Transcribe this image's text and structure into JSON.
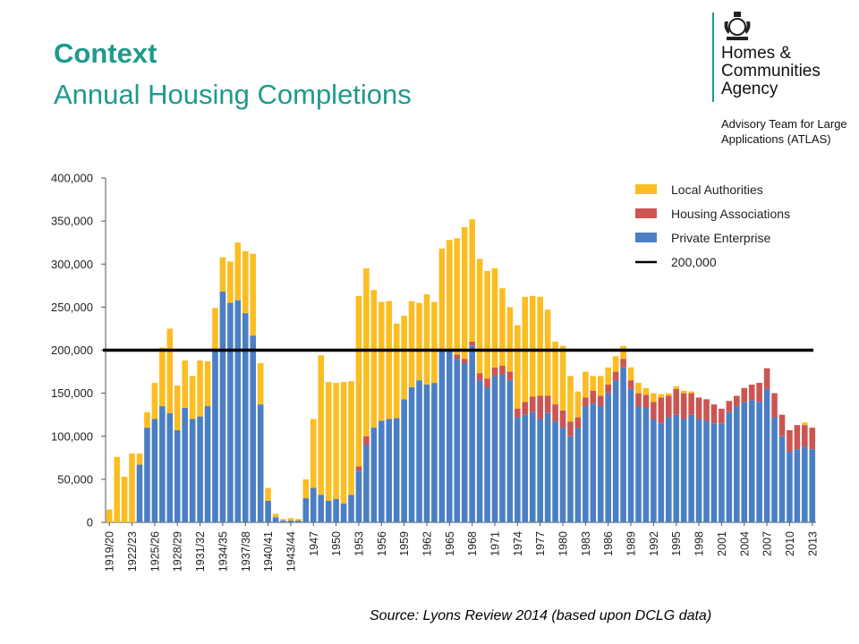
{
  "header": {
    "title": "Context",
    "subtitle": "Annual Housing Completions"
  },
  "logo": {
    "org_name": "Homes &\nCommunities\nAgency",
    "team": "Advisory Team for Large\nApplications (ATLAS)"
  },
  "source": "Source: Lyons  Review 2014 (based upon DCLG data)",
  "colors": {
    "local_authorities": "#fbbd22",
    "housing_associations": "#cc5552",
    "private_enterprise": "#4a7fc4",
    "reference_line": "#000000",
    "title": "#1e9a8c"
  },
  "chart_data": {
    "type": "bar",
    "stacked": true,
    "title": "",
    "xlabel": "",
    "ylabel": "",
    "ylim": [
      0,
      400000
    ],
    "yticks": [
      0,
      50000,
      100000,
      150000,
      200000,
      250000,
      300000,
      350000,
      400000
    ],
    "ytick_labels": [
      "0",
      "50,000",
      "100,000",
      "150,000",
      "200,000",
      "250,000",
      "300,000",
      "350,000",
      "400,000"
    ],
    "xtick_labels": [
      "1919/20",
      "1922/23",
      "1925/26",
      "1928/29",
      "1931/32",
      "1934/35",
      "1937/38",
      "1940/41",
      "1943/44",
      "1947",
      "1950",
      "1953",
      "1956",
      "1959",
      "1962",
      "1965",
      "1968",
      "1971",
      "1974",
      "1977",
      "1980",
      "1983",
      "1986",
      "1989",
      "1992",
      "1995",
      "1998",
      "2001",
      "2004",
      "2007",
      "2010",
      "2013"
    ],
    "xtick_indices": [
      0,
      3,
      6,
      9,
      12,
      15,
      18,
      21,
      24,
      27,
      30,
      33,
      36,
      39,
      42,
      45,
      48,
      51,
      54,
      57,
      60,
      63,
      66,
      69,
      72,
      75,
      78,
      81,
      84,
      87,
      90,
      93
    ],
    "grid": false,
    "legend_position": "top-right",
    "categories": [
      "1919/20",
      "1920/21",
      "1921/22",
      "1922/23",
      "1923/24",
      "1924/25",
      "1925/26",
      "1926/27",
      "1927/28",
      "1928/29",
      "1929/30",
      "1930/31",
      "1931/32",
      "1932/33",
      "1933/34",
      "1934/35",
      "1935/36",
      "1936/37",
      "1937/38",
      "1938/39",
      "1939/40",
      "1940/41",
      "1941/42",
      "1942/43",
      "1943/44",
      "1944/45",
      "1945/46",
      "1947",
      "1948",
      "1949",
      "1950",
      "1951",
      "1952",
      "1953",
      "1954",
      "1955",
      "1956",
      "1957",
      "1958",
      "1959",
      "1960",
      "1961",
      "1962",
      "1963",
      "1964",
      "1965",
      "1966",
      "1967",
      "1968",
      "1969",
      "1970",
      "1971",
      "1972",
      "1973",
      "1974",
      "1975",
      "1976",
      "1977",
      "1978",
      "1979",
      "1980",
      "1981",
      "1982",
      "1983",
      "1984",
      "1985",
      "1986",
      "1987",
      "1988",
      "1989",
      "1990",
      "1991",
      "1992",
      "1993",
      "1994",
      "1995",
      "1996",
      "1997",
      "1998",
      "1999",
      "2000",
      "2001",
      "2002",
      "2003",
      "2004",
      "2005",
      "2006",
      "2007",
      "2008",
      "2009",
      "2010",
      "2011",
      "2012",
      "2013"
    ],
    "series": [
      {
        "name": "Private Enterprise",
        "values": [
          0,
          0,
          0,
          0,
          67000,
          110000,
          120000,
          135000,
          127000,
          107000,
          133000,
          120000,
          123000,
          135000,
          199000,
          268000,
          255000,
          258000,
          243000,
          217000,
          137000,
          25000,
          6000,
          2000,
          2000,
          2000,
          28000,
          40000,
          32000,
          25000,
          27000,
          22000,
          32000,
          60000,
          90000,
          110000,
          118000,
          120000,
          121000,
          143000,
          157000,
          165000,
          160000,
          162000,
          200000,
          200000,
          190000,
          185000,
          205000,
          165000,
          157000,
          170000,
          172000,
          165000,
          122000,
          125000,
          128000,
          120000,
          127000,
          117000,
          110000,
          100000,
          110000,
          135000,
          138000,
          135000,
          150000,
          165000,
          180000,
          155000,
          135000,
          133000,
          120000,
          115000,
          122000,
          125000,
          120000,
          125000,
          120000,
          118000,
          115000,
          115000,
          128000,
          135000,
          140000,
          142000,
          140000,
          155000,
          122000,
          100000,
          82000,
          85000,
          88000,
          85000
        ]
      },
      {
        "name": "Housing Associations",
        "values": [
          0,
          0,
          0,
          0,
          0,
          0,
          0,
          0,
          0,
          0,
          0,
          0,
          0,
          0,
          0,
          0,
          0,
          0,
          0,
          0,
          0,
          0,
          0,
          0,
          0,
          0,
          0,
          0,
          0,
          0,
          0,
          0,
          0,
          5000,
          10000,
          0,
          0,
          0,
          0,
          0,
          0,
          0,
          0,
          0,
          0,
          0,
          5000,
          5000,
          5000,
          8000,
          10000,
          10000,
          10000,
          10000,
          10000,
          15000,
          18000,
          27000,
          20000,
          20000,
          20000,
          17000,
          12000,
          10000,
          15000,
          12000,
          10000,
          10000,
          10000,
          10000,
          15000,
          15000,
          20000,
          30000,
          25000,
          30000,
          30000,
          25000,
          25000,
          25000,
          22000,
          17000,
          13000,
          12000,
          16000,
          18000,
          22000,
          24000,
          28000,
          25000,
          25000,
          28000,
          25000,
          25000
        ]
      },
      {
        "name": "Local Authorities",
        "values": [
          15000,
          76000,
          53000,
          80000,
          13000,
          18000,
          42000,
          68000,
          98000,
          52000,
          55000,
          50000,
          65000,
          52000,
          50000,
          40000,
          48000,
          67000,
          72000,
          95000,
          48000,
          15000,
          4000,
          2000,
          3000,
          2000,
          22000,
          80000,
          162000,
          138000,
          135000,
          141000,
          132000,
          198000,
          195000,
          160000,
          138000,
          137000,
          110000,
          97000,
          100000,
          90000,
          105000,
          94000,
          118000,
          128000,
          135000,
          153000,
          142000,
          133000,
          125000,
          115000,
          90000,
          75000,
          97000,
          122000,
          117000,
          115000,
          100000,
          73000,
          75000,
          53000,
          30000,
          30000,
          17000,
          23000,
          20000,
          18000,
          15000,
          15000,
          12000,
          8000,
          10000,
          4000,
          3000,
          3000,
          3000,
          2000,
          0,
          0,
          0,
          0,
          0,
          0,
          0,
          0,
          0,
          0,
          0,
          0,
          0,
          0,
          3000,
          0
        ]
      }
    ],
    "reference_line": {
      "name": "200,000",
      "value": 200000
    },
    "legend": [
      "Local Authorities",
      "Housing Associations",
      "Private Enterprise",
      "200,000"
    ]
  }
}
